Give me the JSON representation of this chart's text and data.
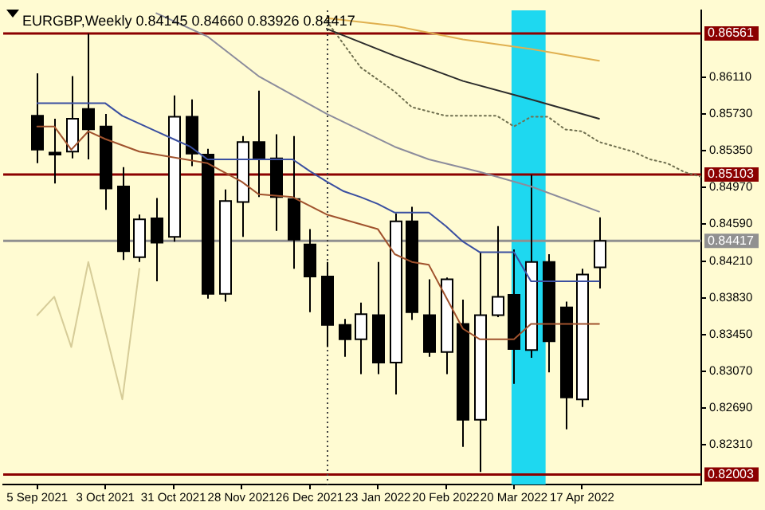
{
  "chart_data": {
    "type": "candlestick",
    "title": "EURGBP,Weekly 0.84145 0.84660 0.83926 0.84417",
    "x": [
      "2021-09-05",
      "2021-09-12",
      "2021-09-19",
      "2021-09-26",
      "2021-10-03",
      "2021-10-10",
      "2021-10-17",
      "2021-10-24",
      "2021-10-31",
      "2021-11-07",
      "2021-11-14",
      "2021-11-21",
      "2021-11-28",
      "2021-12-05",
      "2021-12-12",
      "2021-12-19",
      "2021-12-26",
      "2022-01-02",
      "2022-01-09",
      "2022-01-16",
      "2022-01-23",
      "2022-01-30",
      "2022-02-06",
      "2022-02-13",
      "2022-02-20",
      "2022-02-27",
      "2022-03-06",
      "2022-03-13",
      "2022-03-20",
      "2022-03-27",
      "2022-04-03",
      "2022-04-10",
      "2022-04-17",
      "2022-04-24"
    ],
    "ohlc": [
      [
        0.8571,
        0.8615,
        0.8522,
        0.8536
      ],
      [
        0.8533,
        0.8568,
        0.8501,
        0.8531
      ],
      [
        0.8534,
        0.8612,
        0.8527,
        0.8568
      ],
      [
        0.8578,
        0.8656,
        0.8526,
        0.8557
      ],
      [
        0.856,
        0.8573,
        0.8474,
        0.8496
      ],
      [
        0.8498,
        0.8518,
        0.8422,
        0.8431
      ],
      [
        0.8425,
        0.8469,
        0.842,
        0.8464
      ],
      [
        0.8465,
        0.8486,
        0.84,
        0.844
      ],
      [
        0.8446,
        0.8592,
        0.8441,
        0.857
      ],
      [
        0.857,
        0.8588,
        0.8519,
        0.8532
      ],
      [
        0.8531,
        0.8537,
        0.8382,
        0.8387
      ],
      [
        0.8387,
        0.8495,
        0.8379,
        0.8483
      ],
      [
        0.8482,
        0.855,
        0.8446,
        0.8544
      ],
      [
        0.8544,
        0.8597,
        0.8487,
        0.8527
      ],
      [
        0.8527,
        0.8552,
        0.8452,
        0.8487
      ],
      [
        0.8485,
        0.855,
        0.8413,
        0.8443
      ],
      [
        0.8438,
        0.8454,
        0.8368,
        0.8405
      ],
      [
        0.8405,
        0.842,
        0.8332,
        0.8355
      ],
      [
        0.8355,
        0.8361,
        0.8322,
        0.834
      ],
      [
        0.834,
        0.8378,
        0.8304,
        0.8366
      ],
      [
        0.8365,
        0.842,
        0.8304,
        0.8316
      ],
      [
        0.8316,
        0.847,
        0.8283,
        0.8462
      ],
      [
        0.8462,
        0.8477,
        0.836,
        0.8368
      ],
      [
        0.8365,
        0.8402,
        0.8322,
        0.8327
      ],
      [
        0.8327,
        0.8404,
        0.8304,
        0.8402
      ],
      [
        0.8356,
        0.8381,
        0.8229,
        0.8257
      ],
      [
        0.8257,
        0.843,
        0.8203,
        0.8365
      ],
      [
        0.8365,
        0.8457,
        0.8363,
        0.8384
      ],
      [
        0.8386,
        0.8433,
        0.8294,
        0.833
      ],
      [
        0.8329,
        0.851,
        0.8321,
        0.842
      ],
      [
        0.842,
        0.8428,
        0.8306,
        0.8338
      ],
      [
        0.8373,
        0.8379,
        0.8247,
        0.828
      ],
      [
        0.8278,
        0.8413,
        0.827,
        0.8407
      ],
      [
        0.84145,
        0.8466,
        0.83926,
        0.84417
      ]
    ],
    "series": [
      {
        "type": "line",
        "color": "#3a4fa0",
        "x": [
          "2021-09-05",
          "2021-10-03",
          "2021-10-10",
          "2021-10-17",
          "2021-10-24",
          "2021-10-31",
          "2021-11-07",
          "2021-11-14",
          "2021-12-19",
          "2021-12-26",
          "2022-01-02",
          "2022-01-09",
          "2022-01-16",
          "2022-01-23",
          "2022-01-30",
          "2022-02-13",
          "2022-02-20",
          "2022-02-27",
          "2022-03-06",
          "2022-03-20",
          "2022-03-27",
          "2022-04-24"
        ],
        "values": [
          0.8584,
          0.8584,
          0.8571,
          0.8563,
          0.8555,
          0.8547,
          0.8539,
          0.8526,
          0.8526,
          0.8514,
          0.8503,
          0.8493,
          0.8487,
          0.848,
          0.8471,
          0.8471,
          0.8457,
          0.8441,
          0.843,
          0.843,
          0.84,
          0.84
        ]
      },
      {
        "type": "line",
        "color": "#a0522d",
        "x": [
          "2021-09-05",
          "2021-09-12",
          "2021-09-19",
          "2021-09-26",
          "2021-10-03",
          "2021-10-17",
          "2021-11-14",
          "2021-11-28",
          "2021-12-05",
          "2021-12-19",
          "2022-01-02",
          "2022-01-23",
          "2022-01-30",
          "2022-02-06",
          "2022-02-13",
          "2022-02-20",
          "2022-02-27",
          "2022-03-06",
          "2022-03-20",
          "2022-03-27",
          "2022-04-24"
        ],
        "values": [
          0.856,
          0.856,
          0.8536,
          0.8555,
          0.8547,
          0.8534,
          0.8522,
          0.8503,
          0.849,
          0.8487,
          0.8469,
          0.8454,
          0.8428,
          0.842,
          0.8417,
          0.8384,
          0.8351,
          0.834,
          0.834,
          0.8356,
          0.8356
        ]
      },
      {
        "type": "line",
        "color": "#8c8c9c",
        "x": [
          "2021-10-24",
          "2021-11-14",
          "2021-12-05",
          "2022-01-02",
          "2022-01-30",
          "2022-02-13",
          "2022-03-06",
          "2022-03-27",
          "2022-04-24"
        ],
        "values": [
          0.8677,
          0.8653,
          0.8612,
          0.8573,
          0.8539,
          0.8526,
          0.8513,
          0.8498,
          0.8472
        ]
      },
      {
        "type": "line",
        "color": "#2b2b2b",
        "x": [
          "2022-01-02",
          "2022-01-30",
          "2022-02-27",
          "2022-03-27",
          "2022-04-24"
        ],
        "values": [
          0.8661,
          0.8633,
          0.8607,
          0.8588,
          0.8568
        ]
      },
      {
        "type": "line",
        "color": "#e0b050",
        "x": [
          "2022-01-02",
          "2022-01-30",
          "2022-02-27",
          "2022-03-27",
          "2022-04-24"
        ],
        "values": [
          0.8672,
          0.8664,
          0.865,
          0.864,
          0.8628
        ]
      },
      {
        "type": "line",
        "color": "#707050",
        "line_style": "dotted",
        "x": [
          "2022-01-02",
          "2022-01-09",
          "2022-01-16",
          "2022-01-30",
          "2022-02-06",
          "2022-02-20",
          "2022-03-13",
          "2022-03-20",
          "2022-03-27",
          "2022-04-03",
          "2022-04-10",
          "2022-04-17",
          "2022-04-24",
          "2022-05-01",
          "2022-05-08",
          "2022-05-15",
          "2022-05-22",
          "2022-05-29",
          "2022-06-05"
        ],
        "values": [
          0.8669,
          0.8645,
          0.8621,
          0.8596,
          0.858,
          0.8571,
          0.8571,
          0.856,
          0.857,
          0.857,
          0.8557,
          0.8555,
          0.8544,
          0.8539,
          0.8534,
          0.8526,
          0.8522,
          0.8513,
          0.8508
        ]
      },
      {
        "type": "line",
        "color": "#d6cc98",
        "x": [
          "2021-09-05",
          "2021-09-12",
          "2021-09-19",
          "2021-09-26",
          "2021-10-10",
          "2021-10-17"
        ],
        "values": [
          0.8365,
          0.8384,
          0.8332,
          0.842,
          0.8278,
          0.8413
        ]
      }
    ],
    "xlim": [
      "2021-08-22",
      "2022-06-05"
    ],
    "xticks": [
      {
        "value": "2021-09-05",
        "label": "5 Sep 2021"
      },
      {
        "value": "2021-10-03",
        "label": "3 Oct 2021"
      },
      {
        "value": "2021-10-31",
        "label": "31 Oct 2021"
      },
      {
        "value": "2021-11-28",
        "label": "28 Nov 2021"
      },
      {
        "value": "2021-12-26",
        "label": "26 Dec 2021"
      },
      {
        "value": "2022-01-23",
        "label": "23 Jan 2022"
      },
      {
        "value": "2022-02-20",
        "label": "20 Feb 2022"
      },
      {
        "value": "2022-03-20",
        "label": "20 Mar 2022"
      },
      {
        "value": "2022-04-17",
        "label": "17 Apr 2022"
      }
    ],
    "ylim": [
      0.819,
      0.868
    ],
    "yticks": [
      {
        "value": 0.8611,
        "label": "0.86110"
      },
      {
        "value": 0.8573,
        "label": "0.85730"
      },
      {
        "value": 0.8535,
        "label": "0.85350"
      },
      {
        "value": 0.8497,
        "label": "0.84970"
      },
      {
        "value": 0.8459,
        "label": "0.84590"
      },
      {
        "value": 0.8421,
        "label": "0.84210"
      },
      {
        "value": 0.8383,
        "label": "0.83830"
      },
      {
        "value": 0.8345,
        "label": "0.83450"
      },
      {
        "value": 0.8307,
        "label": "0.83070"
      },
      {
        "value": 0.8269,
        "label": "0.82690"
      },
      {
        "value": 0.8231,
        "label": "0.82310"
      }
    ],
    "ref_lines": [
      {
        "axis": "y",
        "value": 0.86561,
        "label": "0.86561",
        "color": "#8b0000"
      },
      {
        "axis": "y",
        "value": 0.85103,
        "label": "0.85103",
        "color": "#8b0000"
      },
      {
        "axis": "y",
        "value": 0.82003,
        "label": "0.82003",
        "color": "#8b0000"
      },
      {
        "axis": "y",
        "value": 0.84417,
        "label": "0.84417",
        "color": "#909090"
      },
      {
        "axis": "x",
        "value": "2022-01-02",
        "color": "#404040",
        "line_style": "dotted"
      }
    ],
    "bands": [
      {
        "axis": "x",
        "from": "2022-03-19",
        "to": "2022-04-02",
        "color": "#1ed8f0"
      }
    ]
  }
}
